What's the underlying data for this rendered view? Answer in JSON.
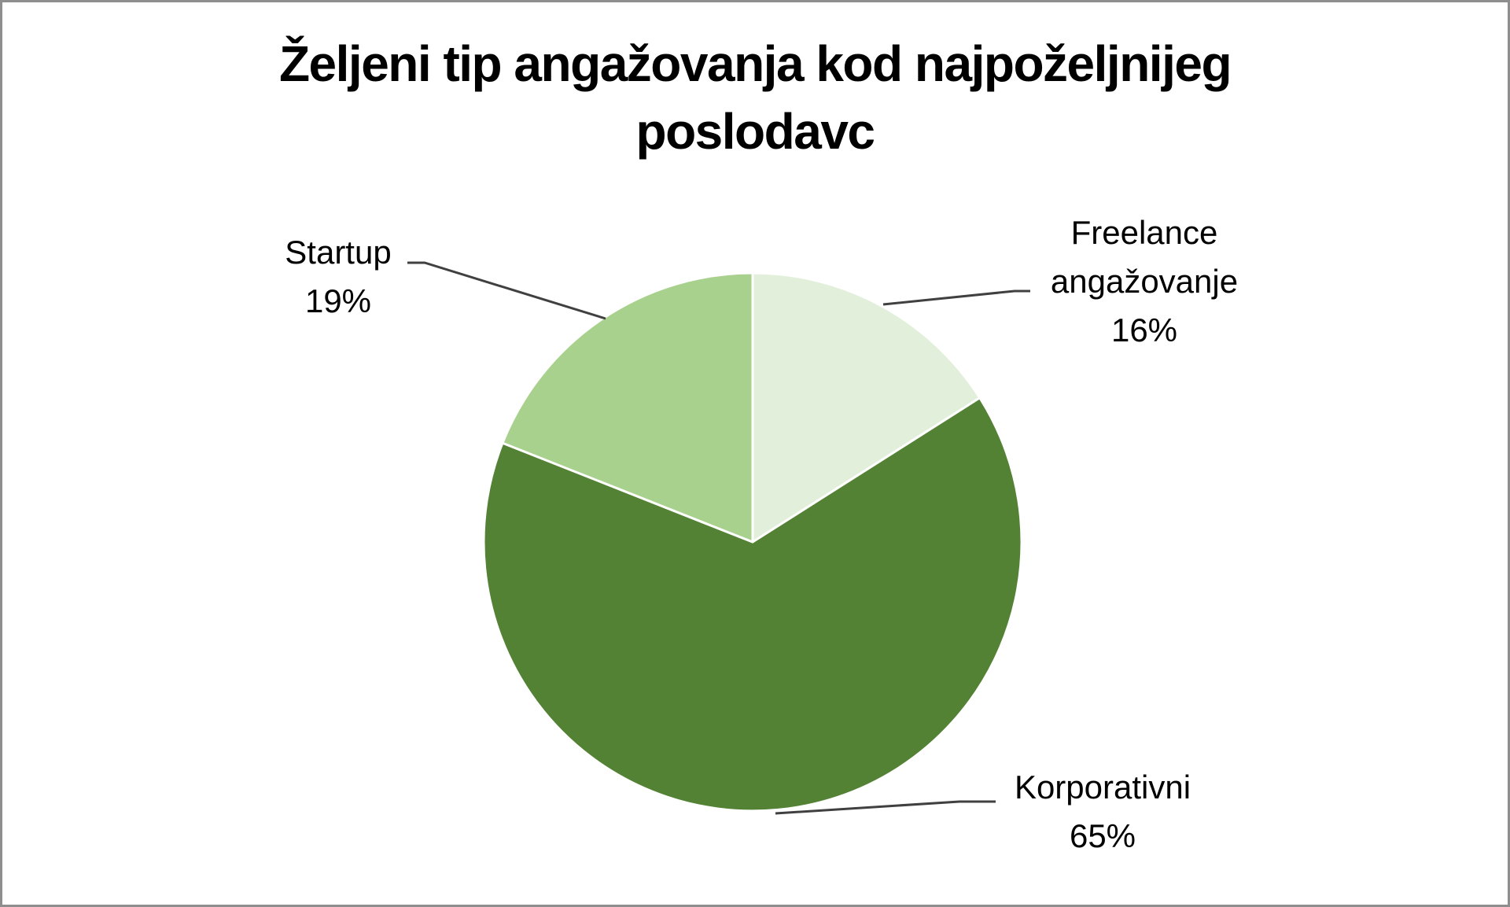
{
  "chart": {
    "title_line1": "Željeni tip angažovanja kod najpoželjnijeg",
    "title_line2": "poslodavc",
    "border_color": "#8e8e8e",
    "background": "#ffffff"
  },
  "labels": {
    "freelance": {
      "name_line1": "Freelance",
      "name_line2": "angažovanje",
      "percent": "16%"
    },
    "korporativni": {
      "name": "Korporativni",
      "percent": "65%"
    },
    "startup": {
      "name": "Startup",
      "percent": "19%"
    }
  },
  "chart_data": {
    "type": "pie",
    "title": "Željeni tip angažovanja kod najpoželjnijeg poslodavc",
    "categories": [
      "Freelance angažovanje",
      "Korporativni",
      "Startup"
    ],
    "values": [
      16,
      65,
      19
    ],
    "unit": "%",
    "colors": [
      "#E2EFDA",
      "#548235",
      "#A9D18E"
    ],
    "start_angle_deg": 0,
    "direction": "clockwise",
    "data_labels": [
      "Freelance angažovanje 16%",
      "Korporativni 65%",
      "Startup 19%"
    ],
    "legend": "none (category names shown in data labels with leader lines)",
    "center": [
      957,
      689
    ],
    "radius": 342
  }
}
